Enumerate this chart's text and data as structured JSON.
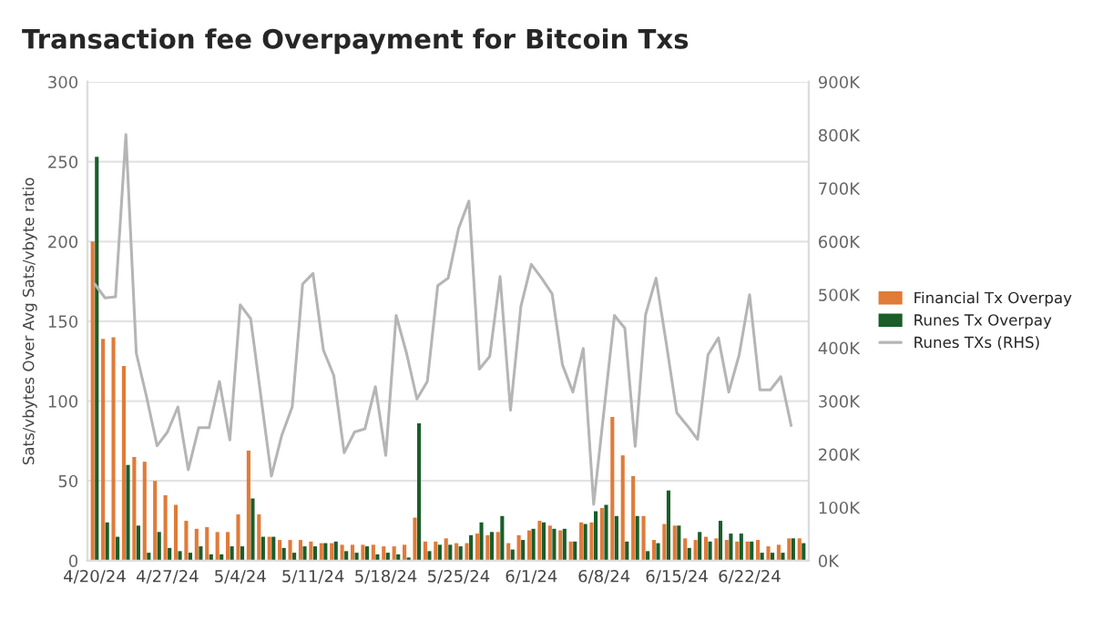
{
  "chart_data": {
    "type": "bar",
    "title": "Transaction fee Overpayment for Bitcoin Txs",
    "ylabel": "Sats/vbytes Over Avg Sats/vbyte ratio",
    "categories": [
      "4/20/24",
      null,
      null,
      null,
      null,
      null,
      null,
      "4/27/24",
      null,
      null,
      null,
      null,
      null,
      null,
      "5/4/24",
      null,
      null,
      null,
      null,
      null,
      null,
      "5/11/24",
      null,
      null,
      null,
      null,
      null,
      null,
      "5/18/24",
      null,
      null,
      null,
      null,
      null,
      null,
      "5/25/24",
      null,
      null,
      null,
      null,
      null,
      null,
      "6/1/24",
      null,
      null,
      null,
      null,
      null,
      null,
      "6/8/24",
      null,
      null,
      null,
      null,
      null,
      null,
      "6/15/24",
      null,
      null,
      null,
      null,
      null,
      null,
      "6/22/24",
      null,
      null,
      null,
      null,
      null
    ],
    "series": [
      {
        "name": "Financial Tx Overpay",
        "color": "#e07b39",
        "values": [
          200,
          139,
          140,
          122,
          65,
          62,
          50,
          41,
          35,
          25,
          20,
          21,
          18,
          18,
          29,
          69,
          29,
          15,
          13,
          13,
          13,
          12,
          11,
          11,
          10,
          10,
          10,
          10,
          9,
          9,
          10,
          27,
          12,
          12,
          14,
          11,
          11,
          17,
          16,
          18,
          11,
          16,
          19,
          25,
          22,
          19,
          12,
          24,
          24,
          33,
          90,
          66,
          53,
          28,
          13,
          23,
          22,
          14,
          13,
          15,
          14,
          13,
          12,
          12,
          13,
          9,
          10,
          14,
          14
        ]
      },
      {
        "name": "Runes Tx Overpay",
        "color": "#1a5e2a",
        "values": [
          253,
          24,
          15,
          60,
          22,
          5,
          18,
          8,
          6,
          5,
          9,
          4,
          4,
          9,
          9,
          39,
          15,
          15,
          8,
          5,
          9,
          9,
          11,
          12,
          6,
          5,
          9,
          4,
          5,
          4,
          2,
          86,
          6,
          10,
          10,
          9,
          16,
          24,
          18,
          28,
          7,
          13,
          20,
          24,
          20,
          20,
          12,
          23,
          31,
          35,
          28,
          12,
          28,
          6,
          11,
          44,
          22,
          8,
          18,
          12,
          25,
          17,
          17,
          12,
          5,
          5,
          5,
          14,
          11
        ]
      },
      {
        "name": "Runes TXs (RHS)",
        "type": "line",
        "axis": "y2",
        "color": "#b5b5b5",
        "values": [
          520,
          494,
          496,
          801,
          390,
          307,
          216,
          242,
          289,
          171,
          250,
          250,
          337,
          227,
          481,
          455,
          307,
          159,
          236,
          289,
          520,
          540,
          396,
          348,
          203,
          242,
          248,
          327,
          198,
          461,
          390,
          304,
          337,
          517,
          531,
          624,
          676,
          360,
          384,
          534,
          283,
          478,
          557,
          531,
          502,
          368,
          317,
          399,
          106,
          283,
          461,
          437,
          215,
          463,
          531,
          407,
          278,
          254,
          228,
          387,
          419,
          317,
          387,
          500,
          321,
          321,
          346,
          254,
          null
        ]
      }
    ],
    "ylim": [
      0,
      300
    ],
    "yticks": [
      0,
      50,
      100,
      150,
      200,
      250,
      300
    ],
    "y2lim": [
      0,
      900
    ],
    "y2ticks": [
      {
        "value": 0,
        "label": "0K"
      },
      {
        "value": 100,
        "label": "100K"
      },
      {
        "value": 200,
        "label": "200K"
      },
      {
        "value": 300,
        "label": "300K"
      },
      {
        "value": 400,
        "label": "400K"
      },
      {
        "value": 500,
        "label": "500K"
      },
      {
        "value": 600,
        "label": "600K"
      },
      {
        "value": 700,
        "label": "700K"
      },
      {
        "value": 800,
        "label": "800K"
      },
      {
        "value": 900,
        "label": "900K"
      }
    ],
    "grid": "y",
    "legend": "right",
    "marker": "none",
    "line_style": "solid"
  }
}
